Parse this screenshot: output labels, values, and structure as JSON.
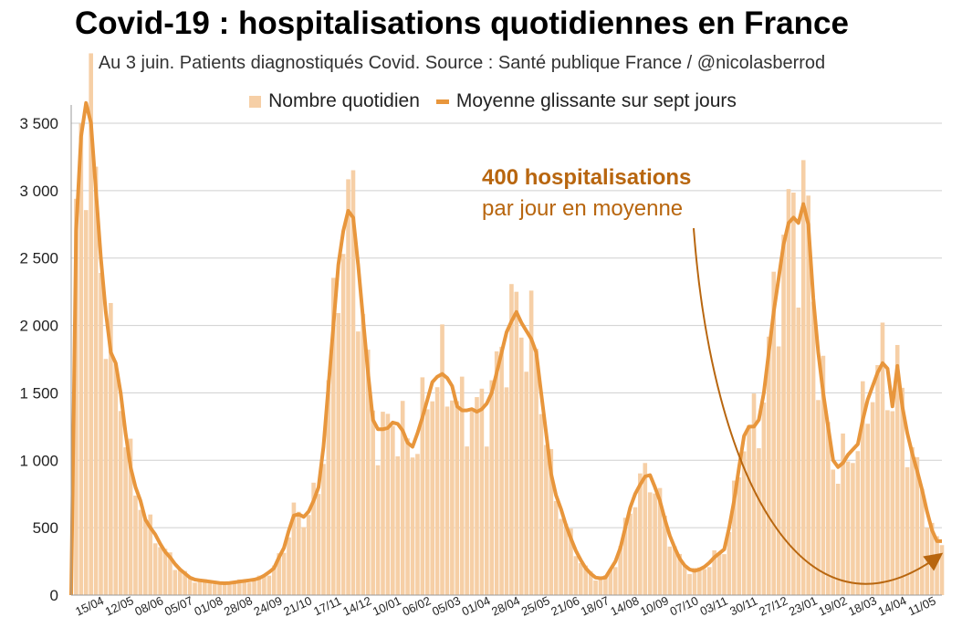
{
  "colors": {
    "bars": "#f6cfa6",
    "line": "#e8963c",
    "annotation": "#b8660f",
    "grid": "#cfcfcf",
    "axis": "#999999"
  },
  "chart_data": {
    "type": "bar",
    "title": "Covid-19 : hospitalisations quotidiennes en France",
    "subtitle": "Au 3 juin. Patients diagnostiqués Covid. Source : Santé publique France / @nicolasberrod",
    "legend": [
      "Nombre quotidien",
      "Moyenne glissante sur sept jours"
    ],
    "legend_position": "top",
    "grid": true,
    "ylim": [
      0,
      3500
    ],
    "yticks": [
      0,
      500,
      1000,
      1500,
      2000,
      2500,
      3000,
      3500
    ],
    "ytick_labels": [
      "0",
      "500",
      "1 000",
      "1 500",
      "2 000",
      "2 500",
      "3 000",
      "3 500"
    ],
    "xtick_labels": [
      "15/04",
      "12/05",
      "08/06",
      "05/07",
      "01/08",
      "28/08",
      "24/09",
      "21/10",
      "17/11",
      "14/12",
      "10/01",
      "06/02",
      "05/03",
      "01/04",
      "28/04",
      "25/05",
      "21/06",
      "18/07",
      "14/08",
      "10/09",
      "07/10",
      "03/11",
      "30/11",
      "27/12",
      "23/01",
      "19/02",
      "18/03",
      "14/04",
      "11/05"
    ],
    "series": [
      {
        "name": "Moyenne glissante sur sept jours",
        "type": "line",
        "points": [
          [
            0,
            0
          ],
          [
            1,
            2700
          ],
          [
            2,
            3400
          ],
          [
            3,
            3650
          ],
          [
            4,
            3500
          ],
          [
            5,
            3000
          ],
          [
            6,
            2500
          ],
          [
            7,
            2100
          ],
          [
            8,
            1800
          ],
          [
            9,
            1720
          ],
          [
            10,
            1500
          ],
          [
            11,
            1200
          ],
          [
            12,
            950
          ],
          [
            13,
            800
          ],
          [
            14,
            700
          ],
          [
            15,
            560
          ],
          [
            16,
            500
          ],
          [
            17,
            450
          ],
          [
            18,
            380
          ],
          [
            19,
            320
          ],
          [
            20,
            280
          ],
          [
            21,
            230
          ],
          [
            22,
            190
          ],
          [
            23,
            160
          ],
          [
            24,
            130
          ],
          [
            25,
            115
          ],
          [
            26,
            110
          ],
          [
            27,
            105
          ],
          [
            28,
            100
          ],
          [
            29,
            95
          ],
          [
            30,
            90
          ],
          [
            31,
            88
          ],
          [
            32,
            90
          ],
          [
            33,
            95
          ],
          [
            34,
            100
          ],
          [
            35,
            105
          ],
          [
            36,
            110
          ],
          [
            37,
            115
          ],
          [
            38,
            125
          ],
          [
            39,
            145
          ],
          [
            40,
            170
          ],
          [
            41,
            200
          ],
          [
            42,
            280
          ],
          [
            43,
            350
          ],
          [
            44,
            480
          ],
          [
            45,
            590
          ],
          [
            46,
            600
          ],
          [
            47,
            580
          ],
          [
            48,
            620
          ],
          [
            49,
            700
          ],
          [
            50,
            800
          ],
          [
            51,
            1100
          ],
          [
            52,
            1550
          ],
          [
            53,
            2000
          ],
          [
            54,
            2450
          ],
          [
            55,
            2700
          ],
          [
            56,
            2850
          ],
          [
            57,
            2800
          ],
          [
            58,
            2450
          ],
          [
            59,
            2050
          ],
          [
            60,
            1650
          ],
          [
            61,
            1300
          ],
          [
            62,
            1230
          ],
          [
            63,
            1230
          ],
          [
            64,
            1240
          ],
          [
            65,
            1280
          ],
          [
            66,
            1270
          ],
          [
            67,
            1220
          ],
          [
            68,
            1130
          ],
          [
            69,
            1100
          ],
          [
            70,
            1200
          ],
          [
            71,
            1320
          ],
          [
            72,
            1450
          ],
          [
            73,
            1580
          ],
          [
            74,
            1620
          ],
          [
            75,
            1640
          ],
          [
            76,
            1610
          ],
          [
            77,
            1550
          ],
          [
            78,
            1400
          ],
          [
            79,
            1370
          ],
          [
            80,
            1370
          ],
          [
            81,
            1380
          ],
          [
            82,
            1360
          ],
          [
            83,
            1380
          ],
          [
            84,
            1420
          ],
          [
            85,
            1500
          ],
          [
            86,
            1650
          ],
          [
            87,
            1800
          ],
          [
            88,
            1950
          ],
          [
            89,
            2030
          ],
          [
            90,
            2100
          ],
          [
            91,
            2020
          ],
          [
            92,
            1960
          ],
          [
            93,
            1900
          ],
          [
            94,
            1800
          ],
          [
            95,
            1500
          ],
          [
            96,
            1200
          ],
          [
            97,
            900
          ],
          [
            98,
            740
          ],
          [
            99,
            640
          ],
          [
            100,
            520
          ],
          [
            101,
            420
          ],
          [
            102,
            330
          ],
          [
            103,
            260
          ],
          [
            104,
            200
          ],
          [
            105,
            160
          ],
          [
            106,
            130
          ],
          [
            107,
            125
          ],
          [
            108,
            130
          ],
          [
            109,
            190
          ],
          [
            110,
            250
          ],
          [
            111,
            350
          ],
          [
            112,
            500
          ],
          [
            113,
            650
          ],
          [
            114,
            750
          ],
          [
            115,
            820
          ],
          [
            116,
            880
          ],
          [
            117,
            890
          ],
          [
            118,
            800
          ],
          [
            119,
            700
          ],
          [
            120,
            560
          ],
          [
            121,
            440
          ],
          [
            122,
            350
          ],
          [
            123,
            270
          ],
          [
            124,
            220
          ],
          [
            125,
            190
          ],
          [
            126,
            180
          ],
          [
            127,
            190
          ],
          [
            128,
            210
          ],
          [
            129,
            240
          ],
          [
            130,
            280
          ],
          [
            131,
            310
          ],
          [
            132,
            340
          ],
          [
            133,
            500
          ],
          [
            134,
            700
          ],
          [
            135,
            950
          ],
          [
            136,
            1180
          ],
          [
            137,
            1250
          ],
          [
            138,
            1250
          ],
          [
            139,
            1300
          ],
          [
            140,
            1500
          ],
          [
            141,
            1800
          ],
          [
            142,
            2100
          ],
          [
            143,
            2350
          ],
          [
            144,
            2600
          ],
          [
            145,
            2760
          ],
          [
            146,
            2800
          ],
          [
            147,
            2760
          ],
          [
            148,
            2900
          ],
          [
            149,
            2750
          ],
          [
            150,
            2200
          ],
          [
            151,
            1800
          ],
          [
            152,
            1500
          ],
          [
            153,
            1250
          ],
          [
            154,
            1000
          ],
          [
            155,
            950
          ],
          [
            156,
            980
          ],
          [
            157,
            1040
          ],
          [
            158,
            1080
          ],
          [
            159,
            1120
          ],
          [
            160,
            1300
          ],
          [
            161,
            1450
          ],
          [
            162,
            1550
          ],
          [
            163,
            1650
          ],
          [
            164,
            1720
          ],
          [
            165,
            1680
          ],
          [
            166,
            1400
          ],
          [
            167,
            1700
          ],
          [
            168,
            1400
          ],
          [
            169,
            1200
          ],
          [
            170,
            1050
          ],
          [
            171,
            920
          ],
          [
            172,
            780
          ],
          [
            173,
            620
          ],
          [
            174,
            480
          ],
          [
            175,
            400
          ],
          [
            176,
            400
          ]
        ]
      }
    ],
    "annotations": [
      {
        "text_bold": "400 hospitalisations",
        "text": "par jour en moyenne"
      }
    ]
  }
}
